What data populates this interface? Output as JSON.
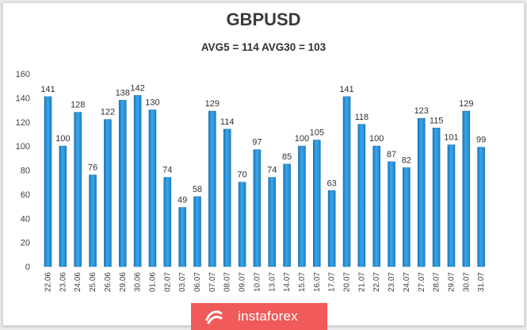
{
  "chart_data": {
    "type": "bar",
    "title": "GBPUSD",
    "subtitle": "AVG5 = 114 AVG30 = 103",
    "categories": [
      "22.06",
      "23.06",
      "24.06",
      "25.06",
      "26.06",
      "29.06",
      "30.06",
      "01.06",
      "02.07",
      "03.07",
      "06.07",
      "07.07",
      "08.07",
      "09.07",
      "10.07",
      "13.07",
      "14.07",
      "15.07",
      "16.07",
      "17.07",
      "20.07",
      "21.07",
      "22.07",
      "23.07",
      "24.07",
      "27.07",
      "28.07",
      "29.07",
      "30.07",
      "31.07"
    ],
    "values": [
      141,
      100,
      128,
      76,
      122,
      138,
      142,
      130,
      74,
      49,
      58,
      129,
      114,
      70,
      97,
      74,
      85,
      100,
      105,
      63,
      141,
      118,
      100,
      87,
      82,
      123,
      115,
      101,
      129,
      99
    ],
    "ylim": [
      0,
      160
    ],
    "yticks": [
      "0",
      "20",
      "40",
      "60",
      "80",
      "100",
      "120",
      "140",
      "160"
    ],
    "grid": false,
    "bar_color": "#2a93d8",
    "bar_edge_color": "#1a6fae"
  },
  "logo": {
    "text": "instaforex",
    "color": "#f05a5a"
  }
}
